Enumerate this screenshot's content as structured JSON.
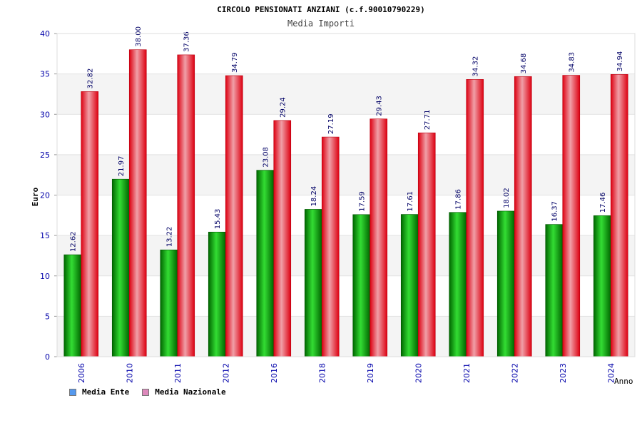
{
  "chart_data": {
    "type": "bar",
    "title": "CIRCOLO PENSIONATI ANZIANI (c.f.90010790229)",
    "subtitle": "Media Importi",
    "xlabel": "Anno",
    "ylabel": "Euro",
    "ylim": [
      0,
      40
    ],
    "yticks": [
      0,
      5,
      10,
      15,
      20,
      25,
      30,
      35,
      40
    ],
    "categories": [
      "2006",
      "2010",
      "2011",
      "2012",
      "2016",
      "2018",
      "2019",
      "2020",
      "2021",
      "2022",
      "2023",
      "2024"
    ],
    "series": [
      {
        "name": "Media Ente",
        "color": "#00aa00",
        "legend_color": "#5599ee",
        "values": [
          12.62,
          21.97,
          13.22,
          15.43,
          23.08,
          18.24,
          17.59,
          17.61,
          17.86,
          18.02,
          16.37,
          17.46
        ],
        "labels": [
          "12.62",
          "21.97",
          "13.22",
          "15.43",
          "23.08",
          "18.24",
          "17.59",
          "17.61",
          "17.86",
          "18.02",
          "16.37",
          "17.46"
        ]
      },
      {
        "name": "Media Nazionale",
        "color": "#ee1111",
        "legend_color": "#dd88bb",
        "values": [
          32.82,
          38.0,
          37.36,
          34.79,
          29.24,
          27.19,
          29.43,
          27.71,
          34.32,
          34.68,
          34.83,
          34.94
        ],
        "labels": [
          "32.82",
          "38.00",
          "37.36",
          "34.79",
          "29.24",
          "27.19",
          "29.43",
          "27.71",
          "34.32",
          "34.68",
          "34.83",
          "34.94"
        ]
      }
    ],
    "grid": true,
    "legend_position": "bottom-left"
  }
}
